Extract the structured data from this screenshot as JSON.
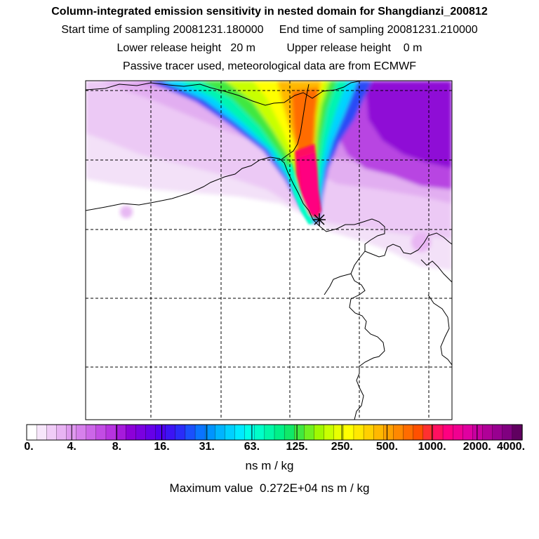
{
  "title": "Column-integrated emission sensitivity in nested domain for Shangdianzi_200812",
  "sampling": {
    "start_label": "Start time of sampling",
    "start_value": "20081231.180000",
    "end_label": "End time of sampling",
    "end_value": "20081231.210000"
  },
  "release": {
    "lower_label": "Lower release height",
    "lower_value": "20 m",
    "upper_label": "Upper release height",
    "upper_value": "0 m"
  },
  "note": "Passive tracer used, meteorological data are from ECMWF",
  "station_marker": "Shangdianzi receptor (star)",
  "colorbar": {
    "tick_labels": [
      "0.",
      "4.",
      "8.",
      "16.",
      "31.",
      "63.",
      "125.",
      "250.",
      "500.",
      "1000.",
      "2000.",
      "4000."
    ],
    "colors": [
      "#ffffff",
      "#f7e6fb",
      "#f0ccf7",
      "#e8b3f3",
      "#df99ef",
      "#d680ec",
      "#cc66e8",
      "#c24ce4",
      "#b733e0",
      "#a61adc",
      "#8c00d8",
      "#7a00e0",
      "#6600e8",
      "#5000f0",
      "#3c14f4",
      "#2a2cf8",
      "#1a50fc",
      "#0a74ff",
      "#0094ff",
      "#00b4ff",
      "#00d0ff",
      "#00eaff",
      "#00ffe8",
      "#00ffc8",
      "#00f8a8",
      "#00f088",
      "#10e868",
      "#40e840",
      "#70f020",
      "#a0f800",
      "#c8ff00",
      "#e8ff00",
      "#ffff00",
      "#ffe800",
      "#ffd000",
      "#ffb800",
      "#ffa000",
      "#ff8800",
      "#ff6c00",
      "#ff5000",
      "#ff3030",
      "#ff1060",
      "#ff0080",
      "#f00090",
      "#e000a0",
      "#c800a0",
      "#b00098",
      "#980090",
      "#800080",
      "#600060"
    ]
  },
  "units": "ns m / kg",
  "max_value_text": "Maximum value  0.272E+04 ns m / kg"
}
